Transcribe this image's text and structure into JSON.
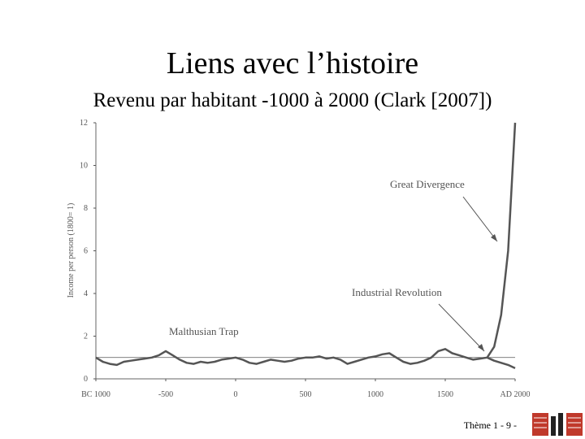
{
  "chart_data": {
    "type": "line",
    "title": "Liens avec l’histoire",
    "subtitle": "Revenu par habitant -1000 à 2000 (Clark [2007])",
    "ylabel": "Income per person (1800= 1)",
    "x": [
      -1000,
      -950,
      -900,
      -850,
      -800,
      -750,
      -700,
      -650,
      -600,
      -550,
      -500,
      -450,
      -400,
      -350,
      -300,
      -250,
      -200,
      -150,
      -100,
      -50,
      0,
      50,
      100,
      150,
      200,
      250,
      300,
      350,
      400,
      450,
      500,
      550,
      600,
      650,
      700,
      750,
      800,
      850,
      900,
      950,
      1000,
      1050,
      1100,
      1150,
      1200,
      1250,
      1300,
      1350,
      1400,
      1450,
      1500,
      1550,
      1600,
      1650,
      1700,
      1750,
      1800,
      1850,
      1900,
      1950,
      2000
    ],
    "series": [
      {
        "color": "#555555",
        "values": [
          1.0,
          0.8,
          0.7,
          0.65,
          0.8,
          0.85,
          0.9,
          0.95,
          1.0,
          1.1,
          1.3,
          1.1,
          0.9,
          0.75,
          0.7,
          0.8,
          0.75,
          0.8,
          0.9,
          0.95,
          1.0,
          0.9,
          0.75,
          0.7,
          0.8,
          0.9,
          0.85,
          0.8,
          0.85,
          0.95,
          1.0,
          1.0,
          1.05,
          0.95,
          1.0,
          0.9,
          0.7,
          0.8,
          0.9,
          1.0,
          1.05,
          1.15,
          1.2,
          1.0,
          0.8,
          0.7,
          0.75,
          0.85,
          1.0,
          1.3,
          1.4,
          1.2,
          1.1,
          1.0,
          0.9,
          0.95,
          1.0,
          1.5,
          3,
          6,
          12
        ]
      },
      {
        "color": "#555555",
        "values": [
          null,
          null,
          null,
          null,
          null,
          null,
          null,
          null,
          null,
          null,
          null,
          null,
          null,
          null,
          null,
          null,
          null,
          null,
          null,
          null,
          null,
          null,
          null,
          null,
          null,
          null,
          null,
          null,
          null,
          null,
          null,
          null,
          null,
          null,
          null,
          null,
          null,
          null,
          null,
          null,
          null,
          null,
          null,
          null,
          null,
          null,
          null,
          null,
          null,
          null,
          null,
          null,
          null,
          null,
          null,
          null,
          1.0,
          0.85,
          0.75,
          0.65,
          0.5
        ]
      }
    ],
    "hline": 1,
    "xlim": [
      -1000,
      2000
    ],
    "ylim": [
      0,
      12
    ],
    "xticks": [
      {
        "value": -1000,
        "label": "BC 1000"
      },
      -500,
      0,
      500,
      1000,
      1500,
      {
        "value": 2000,
        "label": "AD 2000"
      }
    ],
    "yticks": [
      0,
      2,
      4,
      6,
      8,
      10,
      12
    ],
    "annotations": [
      {
        "text": "Great Divergence"
      },
      {
        "text": "Industrial Revolution"
      },
      {
        "text": "Malthusian Trap"
      }
    ]
  },
  "footer": "Thème 1 - 9 -"
}
